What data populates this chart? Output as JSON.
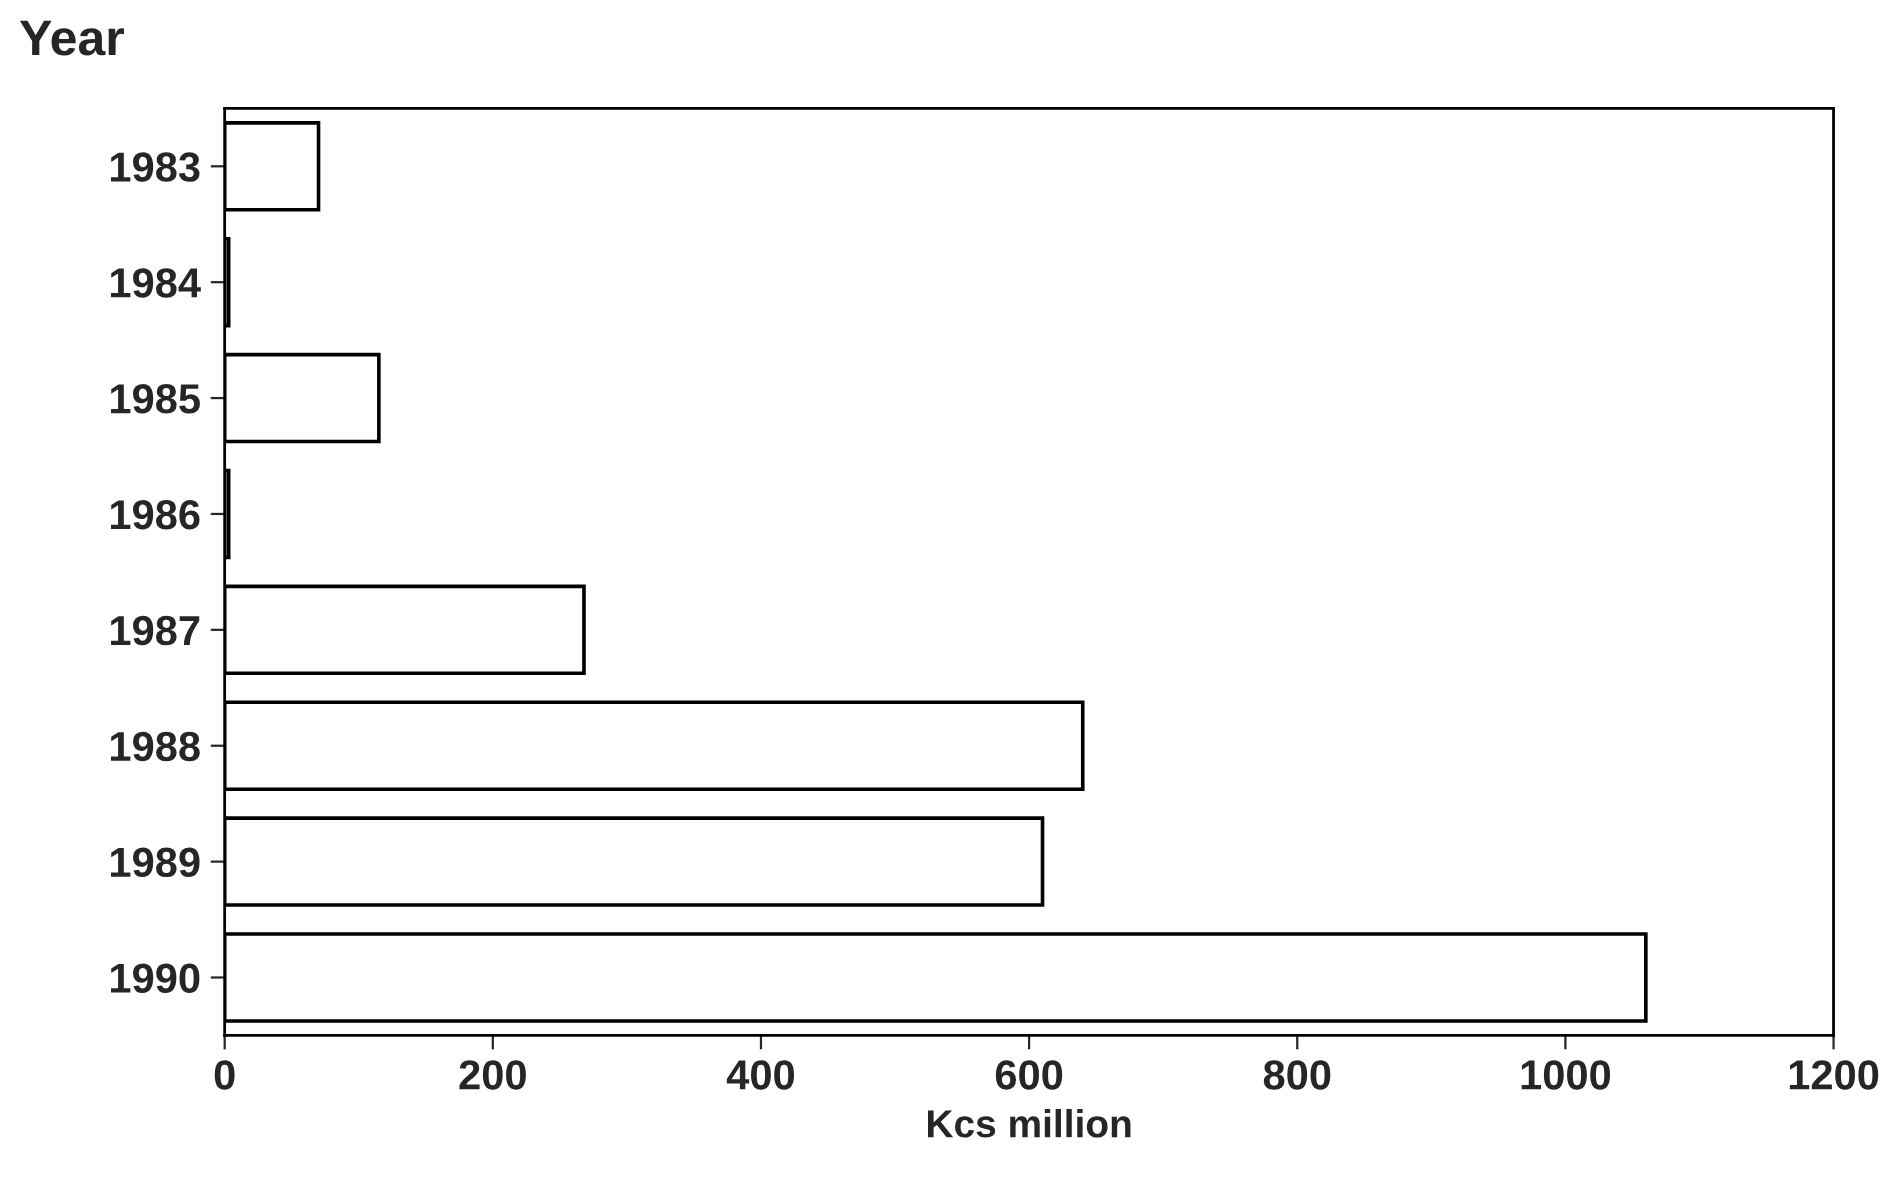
{
  "chart_data": {
    "type": "bar",
    "orientation": "horizontal",
    "ylabel": "Year",
    "xlabel": "Kcs million",
    "categories": [
      "1983",
      "1984",
      "1985",
      "1986",
      "1987",
      "1988",
      "1989",
      "1990"
    ],
    "values": [
      70,
      3,
      115,
      3,
      268,
      640,
      610,
      1060
    ],
    "color": "#ffffff",
    "xlim": [
      0,
      1200
    ],
    "xticks": [
      0,
      200,
      400,
      600,
      800,
      1000,
      1200
    ],
    "grid": false,
    "legend": false
  }
}
